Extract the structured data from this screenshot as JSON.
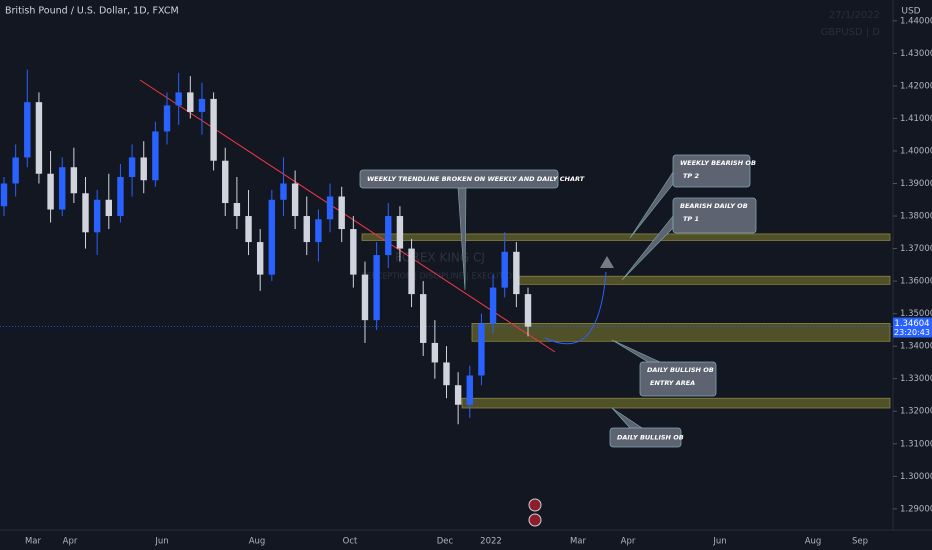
{
  "chart_data": {
    "type": "candlestick",
    "title": "British Pound / U.S. Dollar, 1D, FXCM",
    "currency": "USD",
    "watermark_date": "27/1/2022",
    "watermark_symbol": "GBPUSD | D",
    "brand": "FOREX KING CJ",
    "brand_motto": "PERCEPTION | DISCIPLINE | EXECUTION",
    "up_color": "#2962ff",
    "down_color": "#d1d4dc",
    "candles": [
      [
        1.383,
        1.392,
        1.38,
        1.39
      ],
      [
        1.39,
        1.402,
        1.386,
        1.398
      ],
      [
        1.398,
        1.425,
        1.395,
        1.415
      ],
      [
        1.415,
        1.418,
        1.39,
        1.393
      ],
      [
        1.393,
        1.4,
        1.378,
        1.382
      ],
      [
        1.382,
        1.398,
        1.38,
        1.395
      ],
      [
        1.395,
        1.401,
        1.384,
        1.387
      ],
      [
        1.387,
        1.392,
        1.37,
        1.375
      ],
      [
        1.375,
        1.388,
        1.368,
        1.385
      ],
      [
        1.385,
        1.393,
        1.376,
        1.38
      ],
      [
        1.38,
        1.396,
        1.378,
        1.392
      ],
      [
        1.392,
        1.402,
        1.386,
        1.398
      ],
      [
        1.398,
        1.403,
        1.387,
        1.391
      ],
      [
        1.391,
        1.409,
        1.389,
        1.406
      ],
      [
        1.406,
        1.418,
        1.402,
        1.414
      ],
      [
        1.414,
        1.424,
        1.408,
        1.418
      ],
      [
        1.418,
        1.423,
        1.41,
        1.412
      ],
      [
        1.412,
        1.421,
        1.405,
        1.416
      ],
      [
        1.416,
        1.418,
        1.394,
        1.397
      ],
      [
        1.397,
        1.401,
        1.38,
        1.384
      ],
      [
        1.384,
        1.392,
        1.376,
        1.38
      ],
      [
        1.38,
        1.388,
        1.368,
        1.372
      ],
      [
        1.372,
        1.376,
        1.357,
        1.362
      ],
      [
        1.362,
        1.388,
        1.36,
        1.385
      ],
      [
        1.385,
        1.398,
        1.38,
        1.39
      ],
      [
        1.39,
        1.394,
        1.376,
        1.38
      ],
      [
        1.38,
        1.386,
        1.368,
        1.372
      ],
      [
        1.372,
        1.382,
        1.366,
        1.379
      ],
      [
        1.379,
        1.39,
        1.375,
        1.386
      ],
      [
        1.386,
        1.389,
        1.372,
        1.376
      ],
      [
        1.376,
        1.38,
        1.358,
        1.362
      ],
      [
        1.362,
        1.366,
        1.341,
        1.348
      ],
      [
        1.348,
        1.372,
        1.345,
        1.368
      ],
      [
        1.368,
        1.384,
        1.364,
        1.38
      ],
      [
        1.38,
        1.383,
        1.366,
        1.37
      ],
      [
        1.37,
        1.373,
        1.352,
        1.356
      ],
      [
        1.356,
        1.36,
        1.337,
        1.341
      ],
      [
        1.341,
        1.348,
        1.33,
        1.335
      ],
      [
        1.335,
        1.34,
        1.324,
        1.328
      ],
      [
        1.328,
        1.332,
        1.316,
        1.322
      ],
      [
        1.322,
        1.334,
        1.318,
        1.331
      ],
      [
        1.331,
        1.35,
        1.328,
        1.347
      ],
      [
        1.347,
        1.362,
        1.344,
        1.358
      ],
      [
        1.358,
        1.375,
        1.355,
        1.369
      ],
      [
        1.369,
        1.372,
        1.352,
        1.356
      ],
      [
        1.356,
        1.358,
        1.343,
        1.346
      ]
    ],
    "last_price": 1.34604,
    "last_price_label": "1.34604",
    "countdown": "23:20:43",
    "zones": [
      [
        1.3745,
        1.3725
      ],
      [
        1.3615,
        1.359
      ],
      [
        1.347,
        1.3415
      ],
      [
        1.324,
        1.321
      ]
    ],
    "categories": [
      "Mar",
      "Apr",
      "Jun",
      "Aug",
      "Oct",
      "Dec",
      "2022",
      "Mar",
      "Apr",
      "Jun",
      "Aug",
      "Sep"
    ],
    "ylim": [
      1.2835,
      1.4464
    ],
    "yticks": [
      {
        "value": 1.44,
        "label": "1.44000"
      },
      {
        "value": 1.43,
        "label": "1.43000"
      },
      {
        "value": 1.42,
        "label": "1.42000"
      },
      {
        "value": 1.41,
        "label": "1.41000"
      },
      {
        "value": 1.4,
        "label": "1.40000"
      },
      {
        "value": 1.39,
        "label": "1.39000"
      },
      {
        "value": 1.38,
        "label": "1.38000"
      },
      {
        "value": 1.37,
        "label": "1.37000"
      },
      {
        "value": 1.36,
        "label": "1.36000"
      },
      {
        "value": 1.35,
        "label": "1.35000"
      },
      {
        "value": 1.34,
        "label": "1.34000"
      },
      {
        "value": 1.33,
        "label": "1.33000"
      },
      {
        "value": 1.32,
        "label": "1.32000"
      },
      {
        "value": 1.31,
        "label": "1.31000"
      },
      {
        "value": 1.3,
        "label": "1.30000"
      },
      {
        "value": 1.29,
        "label": "1.29000"
      }
    ],
    "annotations": [
      {
        "lines": [
          "WEEKLY TRENDLINE BROKEN ON WEEKLY AND DAILY CHART"
        ]
      },
      {
        "lines": [
          "WEEKLY BEARISH OB",
          "TP 2"
        ]
      },
      {
        "lines": [
          "BEARISH DAILY OB",
          "TP 1"
        ]
      },
      {
        "lines": [
          "DAILY BULLISH OB",
          "ENTRY AREA"
        ]
      },
      {
        "lines": [
          "DAILY BULLISH OB"
        ]
      }
    ]
  }
}
